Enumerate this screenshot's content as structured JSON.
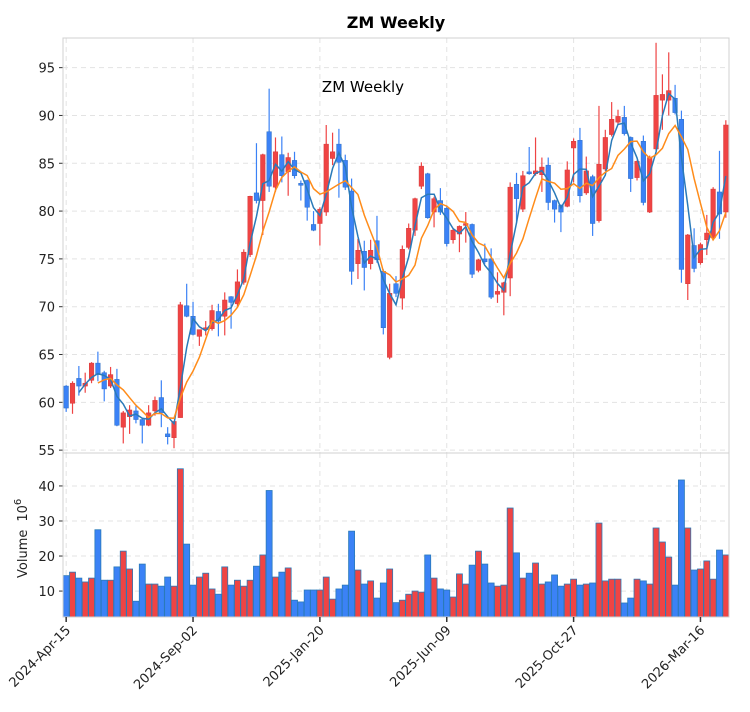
{
  "chart_data": {
    "type": "candlestick",
    "title": "ZM  Weekly",
    "inner_title": "ZM  Weekly",
    "ylabel_volume": "Volume",
    "ylabel_volume_exp": "10",
    "ylabel_volume_exp_power": "6",
    "price_ylim": [
      54.7,
      98.1
    ],
    "price_yticks": [
      55,
      60,
      65,
      70,
      75,
      80,
      85,
      90,
      95
    ],
    "volume_ylim": [
      2.6,
      49.4
    ],
    "volume_yticks": [
      10,
      20,
      30,
      40
    ],
    "xlim": [
      -0.5,
      104.5
    ],
    "xticks": [
      {
        "index": 0,
        "label": "2024-Apr-15"
      },
      {
        "index": 20,
        "label": "2024-Sep-02"
      },
      {
        "index": 40,
        "label": "2025-Jan-20"
      },
      {
        "index": 60,
        "label": "2025-Jun-09"
      },
      {
        "index": 80,
        "label": "2025-Oct-27"
      },
      {
        "index": 100,
        "label": "2026-Mar-16"
      }
    ],
    "grid": true,
    "moving_averages": [
      {
        "period": 3,
        "color": "#2a7ab9"
      },
      {
        "period": 6,
        "color": "#ff8c1a"
      }
    ],
    "colors": {
      "up": "#ef4444",
      "down": "#3b82f6",
      "up_edge": "#d63a3a",
      "down_edge": "#2f6fc4",
      "volume_edge": "#2a7ab9"
    },
    "ohlc": [
      [
        61.7,
        61.8,
        59.0,
        59.4
      ],
      [
        59.9,
        62.2,
        58.8,
        62.0
      ],
      [
        62.5,
        63.8,
        60.7,
        61.7
      ],
      [
        61.7,
        63.1,
        61.0,
        62.0
      ],
      [
        62.3,
        64.2,
        62.0,
        64.1
      ],
      [
        64.1,
        65.3,
        62.2,
        62.9
      ],
      [
        63.1,
        63.3,
        60.1,
        61.4
      ],
      [
        61.7,
        63.7,
        61.5,
        62.9
      ],
      [
        62.4,
        63.5,
        57.5,
        57.6
      ],
      [
        57.4,
        59.1,
        55.7,
        58.9
      ],
      [
        58.5,
        59.7,
        56.7,
        59.2
      ],
      [
        59.1,
        59.6,
        57.8,
        58.2
      ],
      [
        58.2,
        58.4,
        55.7,
        57.6
      ],
      [
        57.6,
        59.7,
        57.5,
        58.9
      ],
      [
        59.1,
        60.6,
        58.6,
        60.2
      ],
      [
        60.5,
        62.3,
        57.4,
        58.9
      ],
      [
        56.7,
        57.4,
        55.6,
        56.4
      ],
      [
        56.3,
        58.0,
        55.2,
        58.0
      ],
      [
        58.4,
        70.5,
        58.4,
        70.2
      ],
      [
        70.1,
        72.4,
        68.9,
        69.0
      ],
      [
        69.0,
        70.5,
        67.0,
        67.1
      ],
      [
        66.9,
        67.6,
        65.9,
        67.6
      ],
      [
        67.6,
        68.5,
        67.0,
        67.8
      ],
      [
        67.7,
        70.2,
        67.5,
        69.6
      ],
      [
        69.5,
        70.3,
        66.9,
        68.5
      ],
      [
        69.0,
        71.5,
        67.0,
        70.7
      ],
      [
        71.05,
        71.1,
        67.7,
        70.45
      ],
      [
        70.3,
        73.9,
        70.0,
        72.6
      ],
      [
        72.55,
        76.0,
        72.3,
        75.7
      ],
      [
        75.45,
        81.6,
        75.2,
        81.55
      ],
      [
        81.9,
        87.1,
        80.8,
        81.1
      ],
      [
        81.1,
        86.0,
        77.5,
        85.9
      ],
      [
        88.3,
        92.8,
        82.0,
        82.6
      ],
      [
        82.5,
        87.7,
        82.0,
        86.2
      ],
      [
        85.9,
        87.8,
        83.0,
        83.7
      ],
      [
        84.1,
        86.1,
        81.6,
        85.6
      ],
      [
        85.3,
        86.2,
        83.4,
        83.7
      ],
      [
        82.9,
        83.2,
        81.1,
        82.7
      ],
      [
        83.2,
        83.3,
        79.0,
        80.4
      ],
      [
        78.6,
        80.0,
        77.9,
        78.0
      ],
      [
        78.7,
        80.4,
        76.4,
        80.2
      ],
      [
        79.9,
        89.0,
        79.5,
        87.0
      ],
      [
        85.5,
        88.2,
        84.8,
        86.2
      ],
      [
        87.0,
        88.6,
        81.4,
        85.1
      ],
      [
        85.3,
        85.9,
        82.2,
        82.5
      ],
      [
        82.1,
        83.4,
        72.3,
        73.7
      ],
      [
        74.5,
        77.1,
        72.9,
        75.9
      ],
      [
        75.8,
        76.9,
        71.7,
        74.1
      ],
      [
        74.5,
        77.0,
        73.9,
        75.9
      ],
      [
        76.9,
        79.5,
        74.6,
        74.9
      ],
      [
        73.7,
        73.9,
        67.1,
        67.8
      ],
      [
        64.7,
        72.4,
        64.5,
        71.4
      ],
      [
        72.4,
        73.2,
        71.0,
        71.4
      ],
      [
        70.9,
        76.4,
        69.7,
        76.0
      ],
      [
        76.2,
        78.7,
        76.0,
        78.2
      ],
      [
        78.0,
        81.4,
        77.4,
        81.3
      ],
      [
        82.6,
        85.1,
        82.3,
        84.7
      ],
      [
        83.9,
        84.0,
        79.2,
        79.3
      ],
      [
        79.9,
        81.5,
        78.3,
        81.3
      ],
      [
        81.1,
        82.4,
        79.6,
        79.9
      ],
      [
        80.3,
        80.6,
        76.3,
        76.6
      ],
      [
        77.0,
        78.2,
        76.6,
        78.0
      ],
      [
        77.6,
        78.5,
        75.7,
        78.4
      ],
      [
        78.5,
        79.9,
        76.7,
        78.7
      ],
      [
        78.6,
        78.7,
        73.0,
        73.4
      ],
      [
        73.8,
        75.0,
        73.6,
        74.9
      ],
      [
        75.0,
        76.6,
        74.5,
        74.7
      ],
      [
        75.0,
        76.1,
        70.8,
        71.0
      ],
      [
        71.3,
        73.6,
        70.4,
        71.6
      ],
      [
        71.5,
        72.6,
        69.1,
        72.5
      ],
      [
        73.0,
        83.0,
        71.1,
        82.5
      ],
      [
        82.8,
        84.0,
        78.7,
        81.3
      ],
      [
        80.2,
        84.2,
        79.9,
        83.7
      ],
      [
        84.1,
        86.7,
        83.8,
        83.9
      ],
      [
        83.9,
        87.7,
        83.7,
        84.2
      ],
      [
        83.8,
        85.6,
        82.0,
        84.6
      ],
      [
        84.8,
        85.6,
        80.1,
        80.9
      ],
      [
        81.1,
        81.2,
        78.8,
        80.2
      ],
      [
        80.6,
        80.7,
        77.8,
        79.9
      ],
      [
        80.5,
        85.2,
        80.4,
        84.3
      ],
      [
        86.6,
        87.6,
        83.0,
        87.3
      ],
      [
        87.4,
        88.7,
        80.9,
        81.6
      ],
      [
        81.9,
        85.7,
        81.7,
        84.2
      ],
      [
        83.6,
        83.8,
        77.4,
        78.7
      ],
      [
        79.0,
        91.0,
        78.8,
        84.9
      ],
      [
        84.4,
        88.5,
        84.2,
        87.7
      ],
      [
        88.0,
        91.4,
        87.8,
        89.6
      ],
      [
        89.3,
        90.6,
        89.1,
        89.9
      ],
      [
        89.8,
        91.0,
        87.9,
        88.1
      ],
      [
        87.7,
        87.8,
        82.0,
        83.4
      ],
      [
        83.5,
        85.3,
        83.2,
        85.2
      ],
      [
        87.3,
        87.9,
        80.6,
        80.9
      ],
      [
        79.9,
        85.8,
        79.8,
        85.6
      ],
      [
        86.5,
        97.6,
        86.3,
        92.1
      ],
      [
        91.6,
        94.3,
        88.5,
        92.2
      ],
      [
        91.6,
        96.6,
        90.0,
        92.6
      ],
      [
        91.8,
        93.2,
        90.1,
        90.3
      ],
      [
        89.6,
        90.5,
        72.5,
        73.9
      ],
      [
        72.4,
        77.6,
        70.7,
        77.5
      ],
      [
        76.4,
        78.2,
        73.6,
        74.0
      ],
      [
        74.6,
        76.7,
        74.4,
        76.5
      ],
      [
        77.0,
        79.6,
        75.4,
        77.7
      ],
      [
        77.2,
        82.5,
        77.0,
        82.3
      ],
      [
        82.0,
        86.3,
        77.1,
        79.7
      ],
      [
        79.9,
        89.5,
        79.3,
        89.0
      ]
    ],
    "volume": [
      14.4,
      15.4,
      13.7,
      12.6,
      13.7,
      27.5,
      13.1,
      13.1,
      16.9,
      21.4,
      16.3,
      7.1,
      17.7,
      12.0,
      12.0,
      11.4,
      14.0,
      11.4,
      44.9,
      23.4,
      11.7,
      14.0,
      15.1,
      10.6,
      9.1,
      16.9,
      11.7,
      13.1,
      11.4,
      13.1,
      17.1,
      20.3,
      38.7,
      14.0,
      15.4,
      16.6,
      7.4,
      6.9,
      10.3,
      10.3,
      10.3,
      14.0,
      7.7,
      10.6,
      11.7,
      27.1,
      16.0,
      12.0,
      12.9,
      8.0,
      12.3,
      16.3,
      6.7,
      7.4,
      9.1,
      10.0,
      9.7,
      20.3,
      13.7,
      10.6,
      10.3,
      8.3,
      14.9,
      12.0,
      17.4,
      21.4,
      17.7,
      12.3,
      11.4,
      11.7,
      33.7,
      20.9,
      13.7,
      15.1,
      18.0,
      12.0,
      12.6,
      14.6,
      11.4,
      12.0,
      13.4,
      11.7,
      12.0,
      12.3,
      29.4,
      12.9,
      13.4,
      13.4,
      6.6,
      8.0,
      13.4,
      12.9,
      12.0,
      28.0,
      24.0,
      19.7,
      11.7,
      41.7,
      28.0,
      16.0,
      16.3,
      18.6,
      13.4,
      21.7,
      20.3
    ]
  }
}
